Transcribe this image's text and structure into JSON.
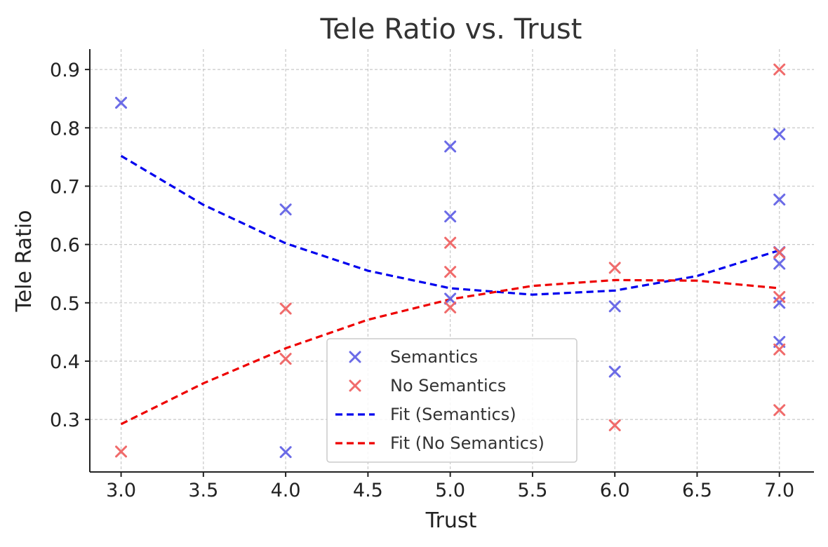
{
  "chart_data": {
    "type": "scatter",
    "title": "Tele Ratio vs. Trust",
    "xlabel": "Trust",
    "ylabel": "Tele Ratio",
    "xlim": [
      2.81,
      7.21
    ],
    "ylim": [
      0.21,
      0.935
    ],
    "xticks": [
      3.0,
      3.5,
      4.0,
      4.5,
      5.0,
      5.5,
      6.0,
      6.5,
      7.0
    ],
    "xtick_labels": [
      "3.0",
      "3.5",
      "4.0",
      "4.5",
      "5.0",
      "5.5",
      "6.0",
      "6.5",
      "7.0"
    ],
    "yticks": [
      0.3,
      0.4,
      0.5,
      0.6,
      0.7,
      0.8,
      0.9
    ],
    "ytick_labels": [
      "0.3",
      "0.4",
      "0.5",
      "0.6",
      "0.7",
      "0.8",
      "0.9"
    ],
    "grid": true,
    "legend_position": "lower-center",
    "series": [
      {
        "name": "Semantics",
        "kind": "scatter",
        "marker": "x",
        "color": "#6464e6",
        "points": [
          {
            "x": 3.0,
            "y": 0.843
          },
          {
            "x": 4.0,
            "y": 0.66
          },
          {
            "x": 4.0,
            "y": 0.244
          },
          {
            "x": 5.0,
            "y": 0.768
          },
          {
            "x": 5.0,
            "y": 0.648
          },
          {
            "x": 5.0,
            "y": 0.507
          },
          {
            "x": 6.0,
            "y": 0.494
          },
          {
            "x": 6.0,
            "y": 0.382
          },
          {
            "x": 7.0,
            "y": 0.789
          },
          {
            "x": 7.0,
            "y": 0.677
          },
          {
            "x": 7.0,
            "y": 0.587
          },
          {
            "x": 7.0,
            "y": 0.567
          },
          {
            "x": 7.0,
            "y": 0.5
          },
          {
            "x": 7.0,
            "y": 0.433
          }
        ]
      },
      {
        "name": "No Semantics",
        "kind": "scatter",
        "marker": "x",
        "color": "#f06464",
        "points": [
          {
            "x": 3.0,
            "y": 0.245
          },
          {
            "x": 4.0,
            "y": 0.49
          },
          {
            "x": 4.0,
            "y": 0.404
          },
          {
            "x": 5.0,
            "y": 0.603
          },
          {
            "x": 5.0,
            "y": 0.553
          },
          {
            "x": 5.0,
            "y": 0.492
          },
          {
            "x": 6.0,
            "y": 0.56
          },
          {
            "x": 6.0,
            "y": 0.29
          },
          {
            "x": 7.0,
            "y": 0.9
          },
          {
            "x": 7.0,
            "y": 0.586
          },
          {
            "x": 7.0,
            "y": 0.51
          },
          {
            "x": 7.0,
            "y": 0.42
          },
          {
            "x": 7.0,
            "y": 0.316
          }
        ]
      },
      {
        "name": "Fit (Semantics)",
        "kind": "line",
        "style": "dashed",
        "color": "#0000ee",
        "x": [
          3.0,
          3.5,
          4.0,
          4.5,
          5.0,
          5.5,
          6.0,
          6.5,
          7.0
        ],
        "y": [
          0.752,
          0.668,
          0.602,
          0.555,
          0.525,
          0.514,
          0.521,
          0.546,
          0.59
        ]
      },
      {
        "name": "Fit (No Semantics)",
        "kind": "line",
        "style": "dashed",
        "color": "#ee0000",
        "x": [
          3.0,
          3.5,
          4.0,
          4.5,
          5.0,
          5.5,
          6.0,
          6.5,
          7.0
        ],
        "y": [
          0.292,
          0.362,
          0.422,
          0.471,
          0.506,
          0.529,
          0.539,
          0.538,
          0.525
        ]
      }
    ]
  }
}
